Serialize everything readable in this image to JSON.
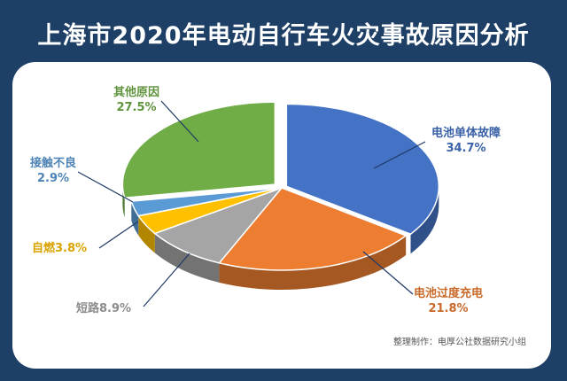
{
  "header": {
    "title": "上海市2020年电动自行车火灾事故原因分析"
  },
  "footer": {
    "credit": "整理制作：电厚公社数据研究小组"
  },
  "chart_data": {
    "type": "pie",
    "title": "上海市2020年电动自行车火灾事故原因分析",
    "slices": [
      {
        "name": "电池单体故障",
        "value": 34.7,
        "label": "34.7%",
        "color": "#4472c4"
      },
      {
        "name": "电池过度充电",
        "value": 21.8,
        "label": "21.8%",
        "color": "#ed7d31"
      },
      {
        "name": "短路",
        "value": 8.9,
        "label": "8.9%",
        "color": "#a5a5a5"
      },
      {
        "name": "自燃",
        "value": 3.8,
        "label": "3.8%",
        "color": "#ffc000"
      },
      {
        "name": "接触不良",
        "value": 2.9,
        "label": "2.9%",
        "color": "#5b9bd5"
      },
      {
        "name": "其他原因",
        "value": 27.5,
        "label": "27.5%",
        "color": "#70ad47"
      }
    ],
    "legend": "none"
  }
}
